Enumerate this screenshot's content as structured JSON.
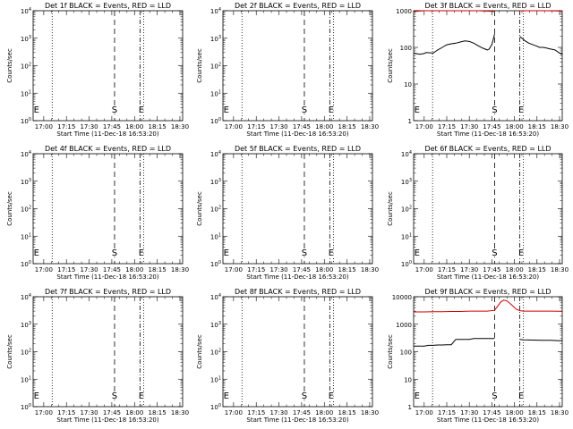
{
  "chart_data": [
    {
      "type": "line",
      "title": "Det 1f BLACK = Events, RED = LLD",
      "xlabel": "Start Time (11-Dec-18 16:53:20)",
      "ylabel": "Counts/sec",
      "ylim": [
        1,
        10000
      ],
      "yscale": "log",
      "xticks": [
        "17:00",
        "17:15",
        "17:30",
        "17:45",
        "18:00",
        "18:15",
        "18:30"
      ],
      "yticks": [
        "10^0",
        "10^1",
        "10^2",
        "10^3",
        "10^4"
      ],
      "markers": [
        {
          "label": "E"
        },
        {
          "label": "S"
        },
        {
          "label": "E"
        }
      ],
      "series": []
    },
    {
      "type": "line",
      "title": "Det 2f BLACK = Events, RED = LLD",
      "xlabel": "Start Time (11-Dec-18 16:53:20)",
      "ylabel": "Counts/sec",
      "ylim": [
        1,
        10000
      ],
      "yscale": "log",
      "xticks": [
        "17:00",
        "17:15",
        "17:30",
        "17:45",
        "18:00",
        "18:15",
        "18:30"
      ],
      "yticks": [
        "10^0",
        "10^1",
        "10^2",
        "10^3",
        "10^4"
      ],
      "markers": [
        {
          "label": "E"
        },
        {
          "label": "S"
        },
        {
          "label": "E"
        }
      ],
      "series": []
    },
    {
      "type": "line",
      "title": "Det 3f BLACK = Events, RED = LLD",
      "xlabel": "Start Time (11-Dec-18 16:53:20)",
      "ylabel": "Counts/sec",
      "ylim": [
        1,
        1000
      ],
      "yscale": "log",
      "xticks": [
        "17:00",
        "17:15",
        "17:30",
        "17:45",
        "18:00",
        "18:15",
        "18:30"
      ],
      "yticks": [
        "1",
        "10",
        "100",
        "1000"
      ],
      "markers": [
        {
          "label": "E"
        },
        {
          "label": "S"
        },
        {
          "label": "E"
        }
      ],
      "series": [
        {
          "color": "#000000",
          "x": [
            16.883,
            16.95,
            17.0,
            17.02,
            17.1,
            17.15,
            17.2,
            17.25,
            17.3,
            17.35,
            17.4,
            17.45,
            17.5,
            17.55,
            17.6,
            17.65,
            17.7,
            17.72,
            17.75,
            17.78,
            null,
            18.06,
            18.08,
            18.12,
            18.16,
            18.2,
            18.24,
            18.28,
            18.32,
            18.36,
            18.4,
            18.45,
            18.5,
            18.53
          ],
          "y": [
            70,
            65,
            68,
            72,
            70,
            85,
            100,
            118,
            125,
            130,
            140,
            150,
            145,
            130,
            110,
            95,
            85,
            90,
            120,
            230,
            null,
            200,
            180,
            150,
            130,
            120,
            110,
            100,
            100,
            95,
            90,
            85,
            70,
            65
          ]
        },
        {
          "color": "#cc0000",
          "x": [
            16.883,
            17.0,
            17.2,
            17.4,
            17.6,
            17.78,
            null,
            18.06,
            18.2,
            18.35,
            18.53
          ],
          "y": [
            950,
            1000,
            1000,
            1000,
            1000,
            950,
            null,
            1000,
            1000,
            1000,
            980
          ]
        }
      ]
    },
    {
      "type": "line",
      "title": "Det 4f BLACK = Events, RED = LLD",
      "xlabel": "Start Time (11-Dec-18 16:53:20)",
      "ylabel": "Counts/sec",
      "ylim": [
        1,
        10000
      ],
      "yscale": "log",
      "xticks": [
        "17:00",
        "17:15",
        "17:30",
        "17:45",
        "18:00",
        "18:15",
        "18:30"
      ],
      "yticks": [
        "10^0",
        "10^1",
        "10^2",
        "10^3",
        "10^4"
      ],
      "markers": [
        {
          "label": "E"
        },
        {
          "label": "S"
        },
        {
          "label": "E"
        }
      ],
      "series": []
    },
    {
      "type": "line",
      "title": "Det 5f BLACK = Events, RED = LLD",
      "xlabel": "Start Time (11-Dec-18 16:53:20)",
      "ylabel": "Counts/sec",
      "ylim": [
        1,
        10000
      ],
      "yscale": "log",
      "xticks": [
        "17:00",
        "17:15",
        "17:30",
        "17:45",
        "18:00",
        "18:15",
        "18:30"
      ],
      "yticks": [
        "10^0",
        "10^1",
        "10^2",
        "10^3",
        "10^4"
      ],
      "markers": [
        {
          "label": "E"
        },
        {
          "label": "S"
        },
        {
          "label": "E"
        }
      ],
      "series": []
    },
    {
      "type": "line",
      "title": "Det 6f BLACK = Events, RED = LLD",
      "xlabel": "Start Time (11-Dec-18 16:53:20)",
      "ylabel": "Counts/sec",
      "ylim": [
        1,
        10000
      ],
      "yscale": "log",
      "xticks": [
        "17:00",
        "17:15",
        "17:30",
        "17:45",
        "18:00",
        "18:15",
        "18:30"
      ],
      "yticks": [
        "10^0",
        "10^1",
        "10^2",
        "10^3",
        "10^4"
      ],
      "markers": [
        {
          "label": "E"
        },
        {
          "label": "S"
        },
        {
          "label": "E"
        }
      ],
      "series": []
    },
    {
      "type": "line",
      "title": "Det 7f BLACK = Events, RED = LLD",
      "xlabel": "Start Time (11-Dec-18 16:53:20)",
      "ylabel": "Counts/sec",
      "ylim": [
        1,
        10000
      ],
      "yscale": "log",
      "xticks": [
        "17:00",
        "17:15",
        "17:30",
        "17:45",
        "18:00",
        "18:15",
        "18:30"
      ],
      "yticks": [
        "10^0",
        "10^1",
        "10^2",
        "10^3",
        "10^4"
      ],
      "markers": [
        {
          "label": "E"
        },
        {
          "label": "S"
        },
        {
          "label": "E"
        }
      ],
      "series": []
    },
    {
      "type": "line",
      "title": "Det 8f BLACK = Events, RED = LLD",
      "xlabel": "Start Time (11-Dec-18 16:53:20)",
      "ylabel": "Counts/sec",
      "ylim": [
        1,
        10000
      ],
      "yscale": "log",
      "xticks": [
        "17:00",
        "17:15",
        "17:30",
        "17:45",
        "18:00",
        "18:15",
        "18:30"
      ],
      "yticks": [
        "10^0",
        "10^1",
        "10^2",
        "10^3",
        "10^4"
      ],
      "markers": [
        {
          "label": "E"
        },
        {
          "label": "S"
        },
        {
          "label": "E"
        }
      ],
      "series": []
    },
    {
      "type": "line",
      "title": "Det 9f BLACK = Events, RED = LLD",
      "xlabel": "Start Time (11-Dec-18 16:53:20)",
      "ylabel": "Counts/sec",
      "ylim": [
        1,
        10000
      ],
      "yscale": "log",
      "xticks": [
        "17:00",
        "17:15",
        "17:30",
        "17:45",
        "18:00",
        "18:15",
        "18:30"
      ],
      "yticks": [
        "1",
        "10",
        "100",
        "1000",
        "10000"
      ],
      "markers": [
        {
          "label": "E"
        },
        {
          "label": "S"
        },
        {
          "label": "E"
        }
      ],
      "series": [
        {
          "color": "#000000",
          "x": [
            16.883,
            17.0,
            17.05,
            17.1,
            17.15,
            17.2,
            17.25,
            17.3,
            17.35,
            17.4,
            17.45,
            17.5,
            17.55,
            17.6,
            17.65,
            17.7,
            17.75,
            17.78,
            null,
            18.06,
            18.1,
            18.2,
            18.3,
            18.4,
            18.45,
            18.5,
            18.53
          ],
          "y": [
            160,
            160,
            170,
            170,
            175,
            175,
            180,
            180,
            280,
            280,
            280,
            280,
            300,
            300,
            300,
            300,
            300,
            300,
            null,
            280,
            270,
            265,
            260,
            260,
            255,
            250,
            250
          ]
        },
        {
          "color": "#cc0000",
          "x": [
            16.883,
            17.0,
            17.1,
            17.2,
            17.3,
            17.4,
            17.5,
            17.6,
            17.7,
            17.78,
            17.82,
            17.85,
            17.88,
            17.92,
            17.97,
            18.02,
            18.06,
            18.1,
            18.2,
            18.3,
            18.4,
            18.5,
            18.53
          ],
          "y": [
            2800,
            2800,
            2850,
            2850,
            2900,
            2900,
            3000,
            3000,
            3000,
            3200,
            4800,
            6500,
            7500,
            7000,
            5000,
            3500,
            3100,
            3000,
            3000,
            3000,
            3000,
            2950,
            2900
          ]
        }
      ]
    }
  ]
}
